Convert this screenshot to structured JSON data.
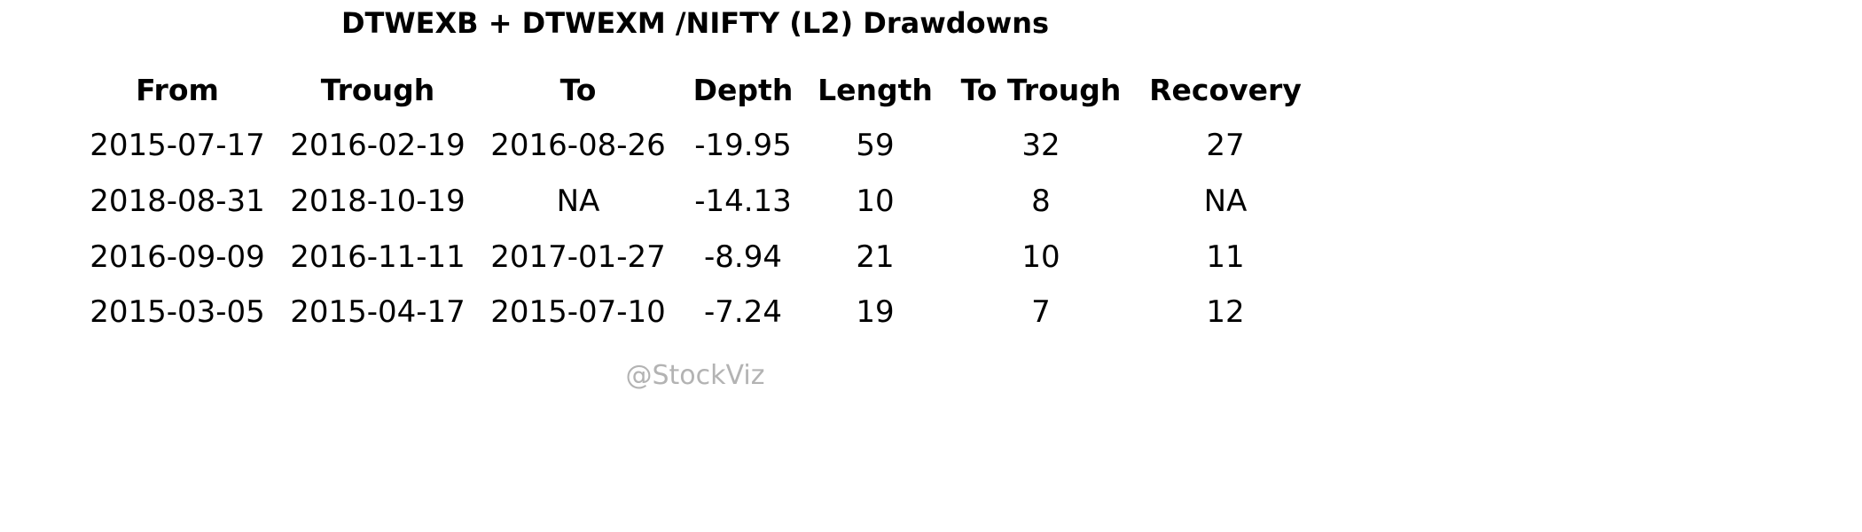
{
  "chart_data": {
    "type": "table",
    "title": "DTWEXB + DTWEXM /NIFTY (L2) Drawdowns",
    "columns": [
      "From",
      "Trough",
      "To",
      "Depth",
      "Length",
      "To Trough",
      "Recovery"
    ],
    "rows": [
      [
        "2015-07-17",
        "2016-02-19",
        "2016-08-26",
        "-19.95",
        "59",
        "32",
        "27"
      ],
      [
        "2018-08-31",
        "2018-10-19",
        "NA",
        "-14.13",
        "10",
        "8",
        "NA"
      ],
      [
        "2016-09-09",
        "2016-11-11",
        "2017-01-27",
        "-8.94",
        "21",
        "10",
        "11"
      ],
      [
        "2015-03-05",
        "2015-04-17",
        "2015-07-10",
        "-7.24",
        "19",
        "7",
        "12"
      ]
    ]
  },
  "watermark": "@StockViz",
  "colors": {
    "text": "#000000",
    "watermark": "#b3b3b3",
    "background": "#ffffff"
  }
}
